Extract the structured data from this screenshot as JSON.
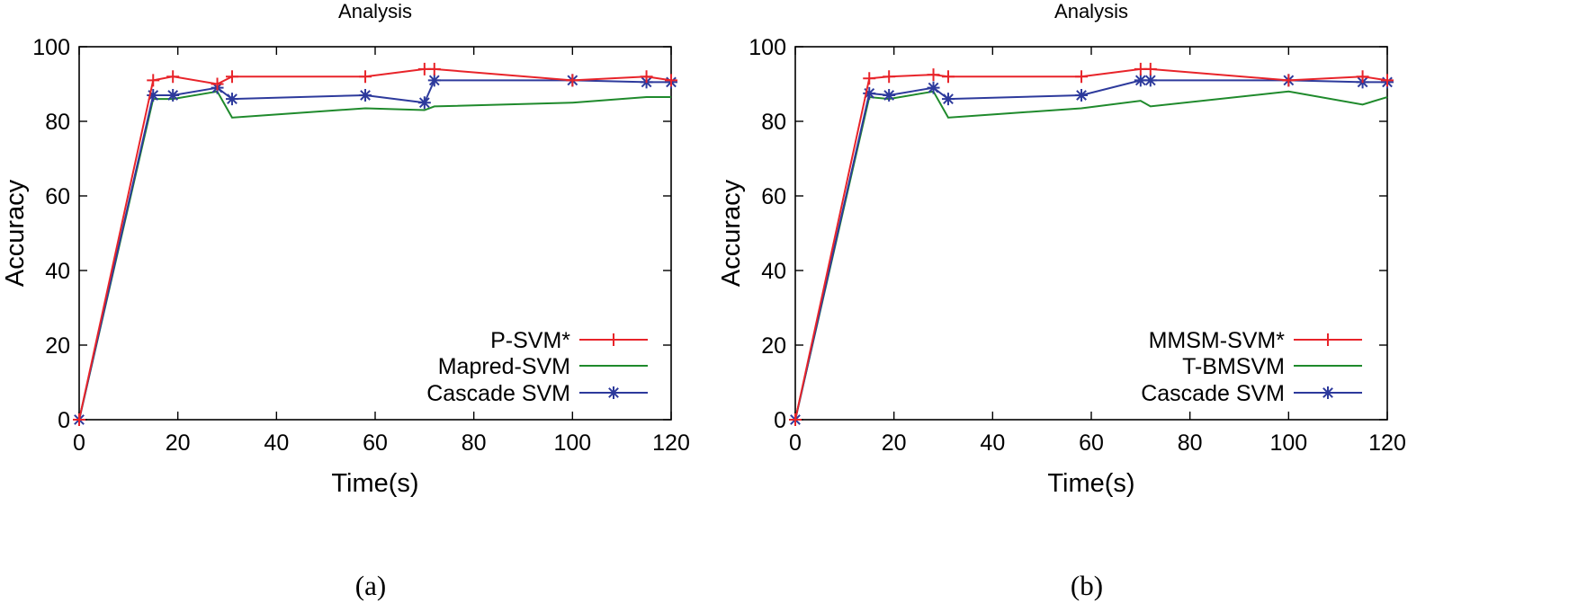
{
  "chart_data": [
    {
      "type": "line",
      "title": "Analysis",
      "xlabel": "Time(s)",
      "ylabel": "Accuracy",
      "xlim": [
        0,
        120
      ],
      "ylim": [
        0,
        100
      ],
      "xticks": [
        0,
        20,
        40,
        60,
        80,
        100,
        120
      ],
      "yticks": [
        0,
        20,
        40,
        60,
        80,
        100
      ],
      "grid": false,
      "legend_position": "bottom-right",
      "caption": "(a)",
      "series": [
        {
          "name": "P-SVM*",
          "color": "#e8242a",
          "marker": "plus",
          "x": [
            0,
            15,
            19,
            28,
            31,
            58,
            70,
            72,
            100,
            115,
            120
          ],
          "y": [
            0,
            91,
            92,
            90,
            92,
            92,
            94,
            94,
            91,
            92,
            91
          ]
        },
        {
          "name": "Mapred-SVM",
          "color": "#1f8a2c",
          "marker": "none",
          "x": [
            0,
            15,
            19,
            28,
            31,
            58,
            70,
            72,
            100,
            115,
            120
          ],
          "y": [
            0,
            86,
            86,
            88,
            81,
            83.5,
            83,
            84,
            85,
            86.5,
            86.5
          ]
        },
        {
          "name": "Cascade SVM",
          "color": "#2d3a9c",
          "marker": "asterisk",
          "x": [
            0,
            15,
            19,
            28,
            31,
            58,
            70,
            72,
            100,
            115,
            120
          ],
          "y": [
            0,
            87,
            87,
            89,
            86,
            87,
            85,
            91,
            91,
            90.5,
            90.5
          ]
        }
      ]
    },
    {
      "type": "line",
      "title": "Analysis",
      "xlabel": "Time(s)",
      "ylabel": "Accuracy",
      "xlim": [
        0,
        120
      ],
      "ylim": [
        0,
        100
      ],
      "xticks": [
        0,
        20,
        40,
        60,
        80,
        100,
        120
      ],
      "yticks": [
        0,
        20,
        40,
        60,
        80,
        100
      ],
      "grid": false,
      "legend_position": "bottom-right",
      "caption": "(b)",
      "series": [
        {
          "name": "MMSM-SVM*",
          "color": "#e8242a",
          "marker": "plus",
          "x": [
            0,
            15,
            19,
            28,
            31,
            58,
            70,
            72,
            100,
            115,
            120
          ],
          "y": [
            0,
            91.5,
            92,
            92.5,
            92,
            92,
            94,
            94,
            91,
            92,
            91
          ]
        },
        {
          "name": "T-BMSVM",
          "color": "#1f8a2c",
          "marker": "none",
          "x": [
            0,
            15,
            19,
            28,
            31,
            58,
            70,
            72,
            100,
            115,
            120
          ],
          "y": [
            0,
            86.5,
            86,
            88,
            81,
            83.5,
            85.5,
            84,
            88,
            84.5,
            86.5
          ]
        },
        {
          "name": "Cascade SVM",
          "color": "#2d3a9c",
          "marker": "asterisk",
          "x": [
            0,
            15,
            19,
            28,
            31,
            58,
            70,
            72,
            100,
            115,
            120
          ],
          "y": [
            0,
            87.5,
            87,
            89,
            86,
            87,
            91,
            91,
            91,
            90.5,
            90.5
          ]
        }
      ]
    }
  ]
}
